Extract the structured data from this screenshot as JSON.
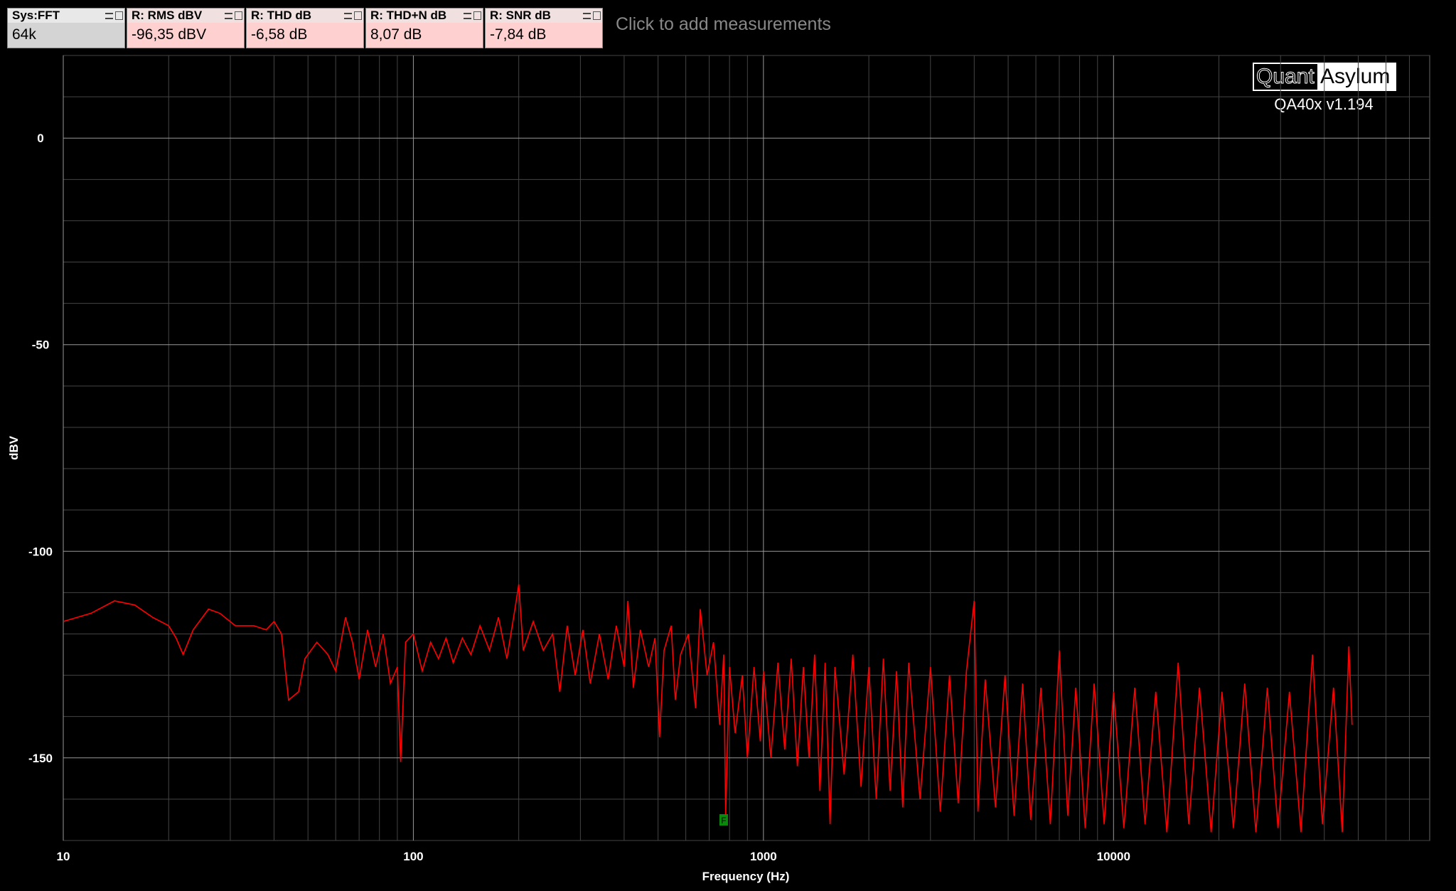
{
  "measurements": [
    {
      "title": "Sys:FFT",
      "value": "64k"
    },
    {
      "title": "R: RMS dBV",
      "value": "-96,35 dBV"
    },
    {
      "title": "R: THD dB",
      "value": "-6,58 dB"
    },
    {
      "title": "R: THD+N dB",
      "value": "8,07 dB"
    },
    {
      "title": "R: SNR dB",
      "value": "-7,84 dB"
    }
  ],
  "add_hint": "Click to add measurements",
  "logo": {
    "quant": "Quant",
    "asylum": "Asylum",
    "version": "QA40x v1.194"
  },
  "chart_data": {
    "type": "line",
    "xlabel": "Frequency (Hz)",
    "ylabel": "dBV",
    "xscale": "log",
    "grid": true,
    "xlim": [
      10,
      80000
    ],
    "ylim": [
      -170,
      20
    ],
    "xticks": [
      10,
      100,
      1000,
      10000
    ],
    "yticks": [
      -150,
      -100,
      -50,
      0
    ],
    "x_grid": [
      20,
      30,
      40,
      50,
      60,
      70,
      80,
      90,
      200,
      300,
      400,
      500,
      600,
      700,
      800,
      900,
      2000,
      3000,
      4000,
      5000,
      6000,
      7000,
      8000,
      9000,
      20000,
      30000,
      40000,
      50000,
      60000,
      70000
    ],
    "y_grid": [
      -170,
      -160,
      -140,
      -130,
      -120,
      -110,
      -90,
      -80,
      -70,
      -60,
      -40,
      -30,
      -20,
      -10,
      10,
      20
    ],
    "x": [
      10,
      12,
      14,
      16,
      18,
      20,
      21,
      22,
      23.5,
      26,
      28,
      31,
      35,
      38,
      40,
      42,
      44,
      47,
      49,
      53,
      57,
      60,
      64,
      67,
      70,
      74,
      78,
      82,
      86,
      90,
      92,
      95,
      100,
      106,
      112,
      118,
      124,
      130,
      138,
      146,
      155,
      165,
      175,
      185,
      195,
      200,
      206,
      220,
      235,
      250,
      262,
      275,
      290,
      305,
      320,
      340,
      360,
      380,
      400,
      410,
      425,
      445,
      470,
      490,
      505,
      520,
      545,
      560,
      580,
      610,
      640,
      660,
      690,
      720,
      750,
      770,
      780,
      800,
      830,
      870,
      900,
      940,
      980,
      1000,
      1050,
      1100,
      1150,
      1200,
      1250,
      1300,
      1350,
      1400,
      1450,
      1500,
      1550,
      1600,
      1700,
      1800,
      1900,
      2000,
      2100,
      2200,
      2300,
      2400,
      2500,
      2600,
      2800,
      3000,
      3200,
      3400,
      3600,
      3800,
      4000,
      4100,
      4300,
      4600,
      4900,
      5200,
      5500,
      5800,
      6200,
      6600,
      7000,
      7400,
      7800,
      8300,
      8800,
      9400,
      10000,
      10700,
      11500,
      12300,
      13200,
      14200,
      15300,
      16400,
      17600,
      19000,
      20400,
      22000,
      23700,
      25500,
      27500,
      29500,
      31800,
      34300,
      37000,
      39500,
      42500,
      45000,
      47000,
      48000
    ],
    "series": [
      {
        "name": "R",
        "color": "#ff0000",
        "values": [
          -117,
          -115,
          -112,
          -113,
          -116,
          -118,
          -121,
          -125,
          -119,
          -114,
          -115,
          -118,
          -118,
          -119,
          -117,
          -120,
          -136,
          -134,
          -126,
          -122,
          -125,
          -129,
          -116,
          -122,
          -131,
          -119,
          -128,
          -120,
          -132,
          -128,
          -151,
          -122,
          -120,
          -129,
          -122,
          -126,
          -121,
          -127,
          -121,
          -125,
          -118,
          -124,
          -116,
          -126,
          -114,
          -108,
          -124,
          -117,
          -124,
          -120,
          -134,
          -118,
          -130,
          -119,
          -132,
          -120,
          -131,
          -118,
          -128,
          -112,
          -133,
          -119,
          -128,
          -121,
          -145,
          -124,
          -118,
          -136,
          -125,
          -120,
          -138,
          -114,
          -130,
          -122,
          -142,
          -125,
          -164,
          -128,
          -144,
          -130,
          -150,
          -128,
          -146,
          -129,
          -150,
          -127,
          -148,
          -126,
          -152,
          -128,
          -150,
          -125,
          -158,
          -127,
          -166,
          -128,
          -154,
          -125,
          -157,
          -128,
          -160,
          -126,
          -158,
          -129,
          -162,
          -127,
          -160,
          -128,
          -163,
          -130,
          -161,
          -129,
          -112,
          -163,
          -131,
          -162,
          -130,
          -164,
          -132,
          -165,
          -133,
          -166,
          -124,
          -164,
          -133,
          -167,
          -132,
          -166,
          -134,
          -167,
          -133,
          -166,
          -134,
          -168,
          -127,
          -166,
          -133,
          -168,
          -134,
          -167,
          -132,
          -168,
          -133,
          -167,
          -134,
          -168,
          -125,
          -166,
          -133,
          -168,
          -123,
          -142
        ]
      }
    ],
    "marker": {
      "label": "F",
      "x": 770,
      "y": -165
    }
  }
}
